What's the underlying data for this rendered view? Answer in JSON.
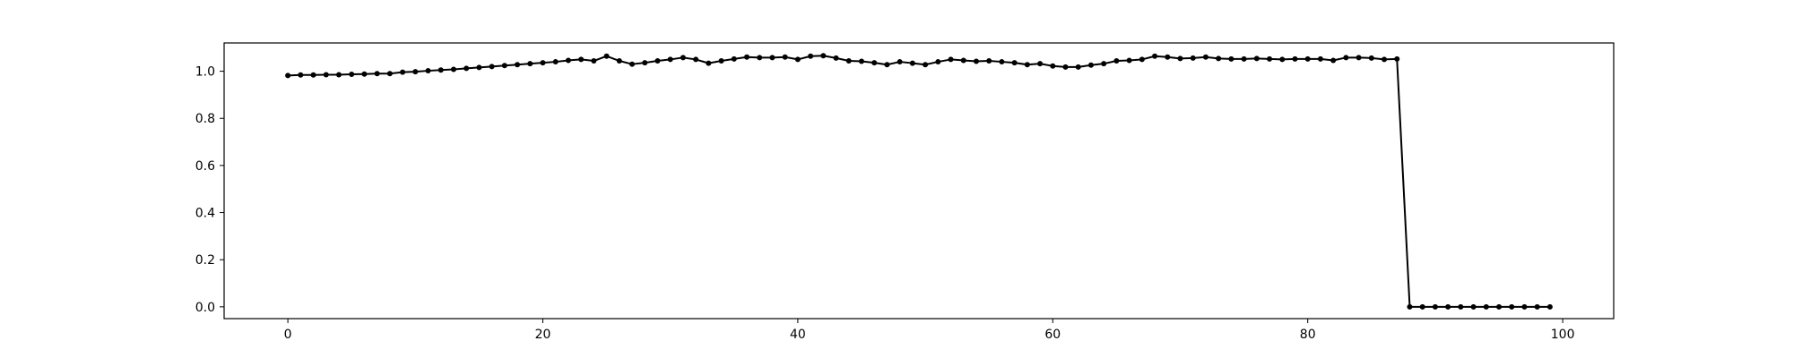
{
  "chart_data": {
    "type": "line",
    "title": "",
    "xlabel": "",
    "ylabel": "",
    "xlim": [
      -5,
      104
    ],
    "ylim": [
      -0.05,
      1.12
    ],
    "grid": false,
    "legend": "none",
    "x_ticks": [
      {
        "value": 0,
        "label": "0"
      },
      {
        "value": 20,
        "label": "20"
      },
      {
        "value": 40,
        "label": "40"
      },
      {
        "value": 60,
        "label": "60"
      },
      {
        "value": 80,
        "label": "80"
      },
      {
        "value": 100,
        "label": "100"
      }
    ],
    "y_ticks": [
      {
        "value": 0.0,
        "label": "0.0"
      },
      {
        "value": 0.2,
        "label": "0.2"
      },
      {
        "value": 0.4,
        "label": "0.4"
      },
      {
        "value": 0.6,
        "label": "0.6"
      },
      {
        "value": 0.8,
        "label": "0.8"
      },
      {
        "value": 1.0,
        "label": "1.0"
      }
    ],
    "line_color": "#000000",
    "series": [
      {
        "x": [
          0,
          1,
          2,
          3,
          4,
          5,
          6,
          7,
          8,
          9,
          10,
          11,
          12,
          13,
          14,
          15,
          16,
          17,
          18,
          19,
          20,
          21,
          22,
          23,
          24,
          25,
          26,
          27,
          28,
          29,
          30,
          31,
          32,
          33,
          34,
          35,
          36,
          37,
          38,
          39,
          40,
          41,
          42,
          43,
          44,
          45,
          46,
          47,
          48,
          49,
          50,
          51,
          52,
          53,
          54,
          55,
          56,
          57,
          58,
          59,
          60,
          61,
          62,
          63,
          64,
          65,
          66,
          67,
          68,
          69,
          70,
          71,
          72,
          73,
          74,
          75,
          76,
          77,
          78,
          79,
          80,
          81,
          82,
          83,
          84,
          85,
          86,
          87,
          88,
          89,
          90,
          91,
          92,
          93,
          94,
          95,
          96,
          97,
          98,
          99
        ],
        "values": [
          0.982,
          0.984,
          0.984,
          0.985,
          0.985,
          0.987,
          0.988,
          0.99,
          0.99,
          0.996,
          0.998,
          1.002,
          1.005,
          1.008,
          1.012,
          1.016,
          1.02,
          1.024,
          1.028,
          1.032,
          1.036,
          1.04,
          1.046,
          1.05,
          1.044,
          1.064,
          1.044,
          1.03,
          1.036,
          1.044,
          1.05,
          1.058,
          1.05,
          1.034,
          1.044,
          1.052,
          1.06,
          1.058,
          1.058,
          1.06,
          1.05,
          1.064,
          1.066,
          1.056,
          1.044,
          1.042,
          1.036,
          1.028,
          1.04,
          1.034,
          1.028,
          1.04,
          1.05,
          1.046,
          1.042,
          1.044,
          1.04,
          1.036,
          1.028,
          1.032,
          1.022,
          1.018,
          1.018,
          1.026,
          1.032,
          1.044,
          1.046,
          1.05,
          1.064,
          1.06,
          1.054,
          1.056,
          1.06,
          1.054,
          1.052,
          1.052,
          1.054,
          1.052,
          1.05,
          1.052,
          1.052,
          1.052,
          1.046,
          1.058,
          1.058,
          1.056,
          1.05,
          1.052,
          0.0,
          0.0,
          0.0,
          0.0,
          0.0,
          0.0,
          0.0,
          0.0,
          0.0,
          0.0,
          0.0,
          0.0
        ]
      }
    ]
  }
}
